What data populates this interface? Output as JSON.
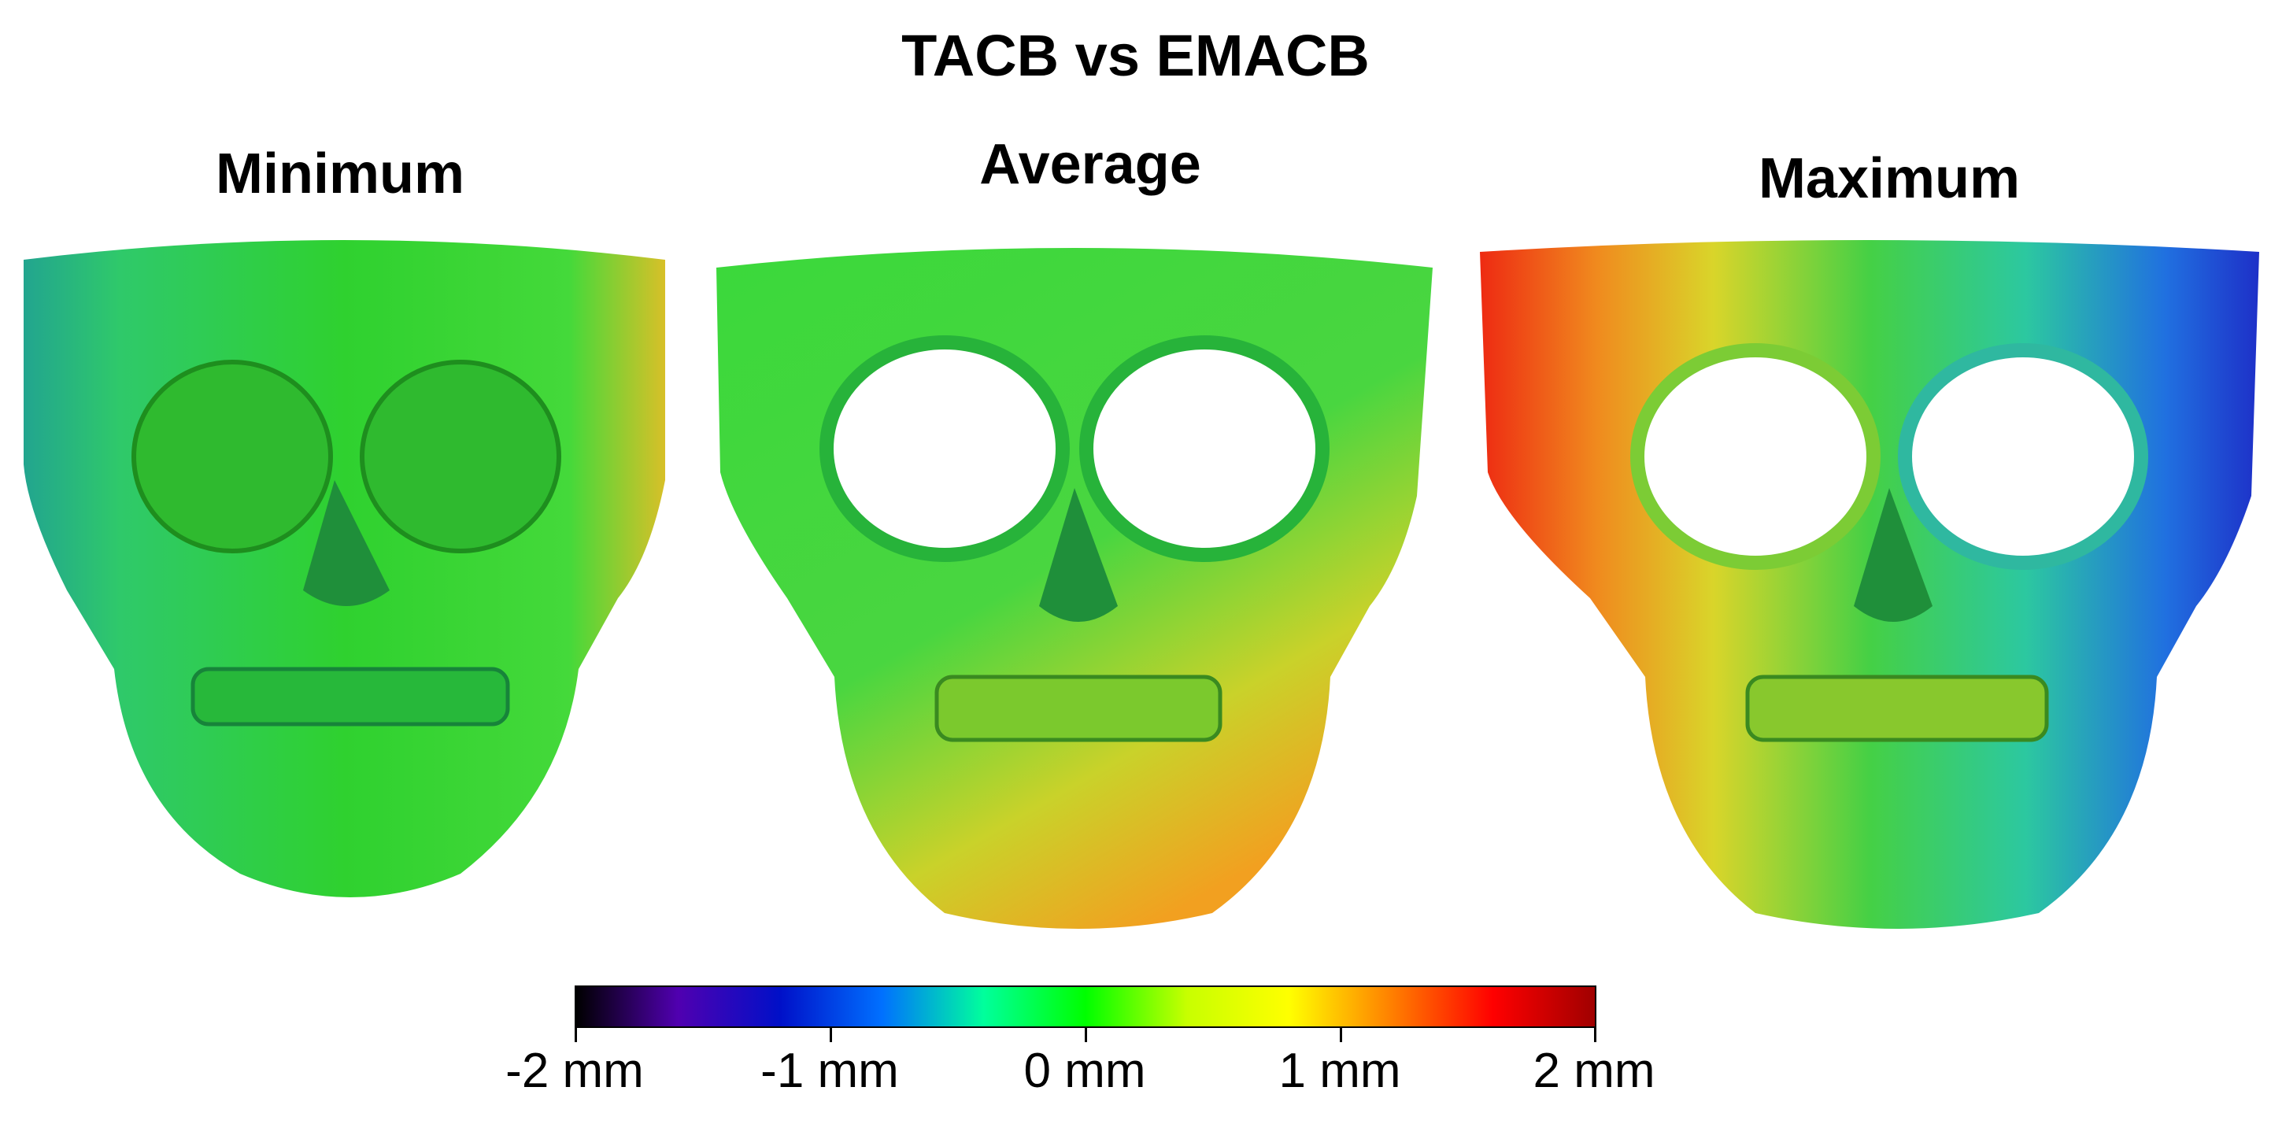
{
  "figure": {
    "title": "TACB vs EMACB",
    "panels": [
      {
        "label": "Minimum",
        "dominant_color": "#2fd12f",
        "left_tint": "#22a58f",
        "right_tint": "#f0b020"
      },
      {
        "label": "Average",
        "dominant_color": "#3bd83b",
        "left_tint": "#f2a020",
        "right_tint": "#34c96a"
      },
      {
        "label": "Maximum",
        "dominant_color": "#45d045",
        "left_tint": "#ee2a12",
        "right_tint": "#1e48d8"
      }
    ],
    "colorbar": {
      "unit": "mm",
      "range": [
        -2,
        2
      ],
      "tick_labels": [
        "-2 mm",
        "-1 mm",
        "0 mm",
        "1 mm",
        "2 mm"
      ],
      "colormap_stops": [
        "#000000",
        "#5000b0",
        "#0010c8",
        "#0070ff",
        "#00ff9c",
        "#00ff00",
        "#c8ff00",
        "#ffff00",
        "#ff8000",
        "#ff0000",
        "#a00000"
      ]
    }
  }
}
